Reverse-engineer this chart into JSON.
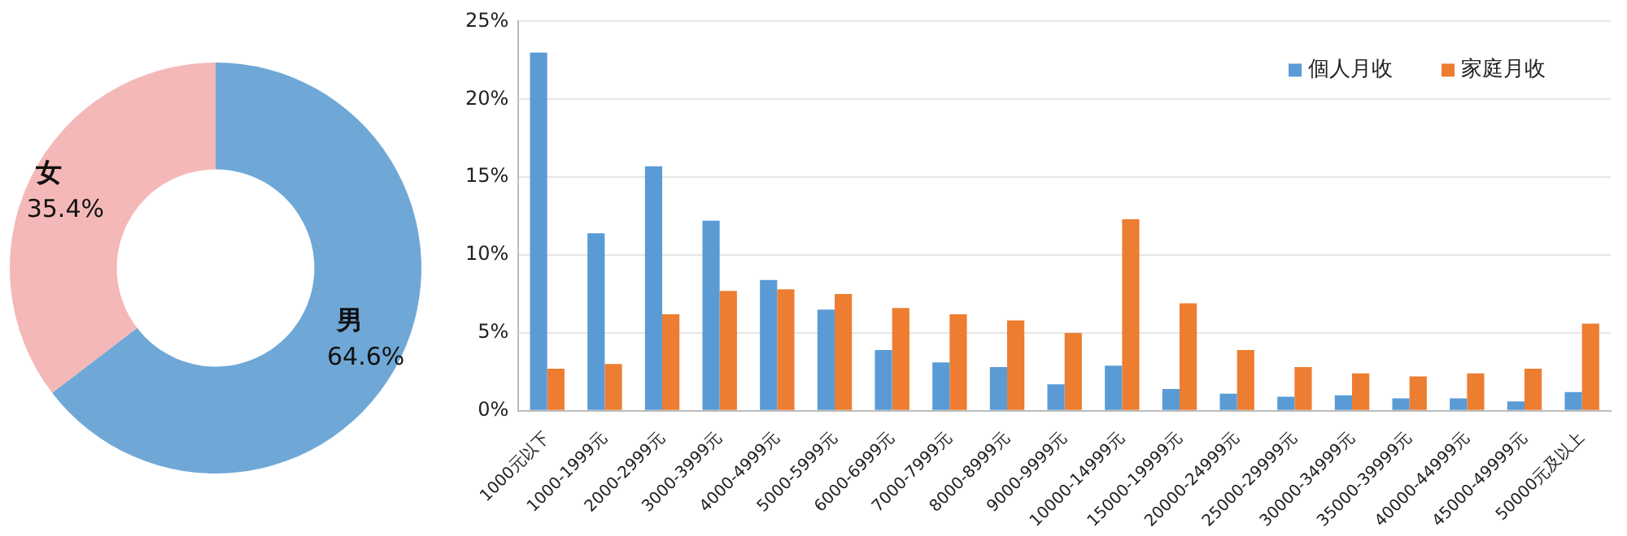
{
  "chart_data": [
    {
      "type": "donut",
      "categories": [
        "男",
        "女"
      ],
      "values": [
        64.6,
        35.4
      ],
      "colors": [
        "#6fa8d6",
        "#f4b8b8"
      ],
      "value_labels": [
        "64.6%",
        "35.4%"
      ],
      "legend": false
    },
    {
      "type": "bar",
      "categories": [
        "1000元以下",
        "1000-1999元",
        "2000-2999元",
        "3000-3999元",
        "4000-4999元",
        "5000-5999元",
        "6000-6999元",
        "7000-7999元",
        "8000-8999元",
        "9000-9999元",
        "10000-14999元",
        "15000-19999元",
        "20000-24999元",
        "25000-29999元",
        "30000-34999元",
        "35000-39999元",
        "40000-44999元",
        "45000-49999元",
        "50000元及以上"
      ],
      "series": [
        {
          "name": "個人月收",
          "color": "#5b9bd5",
          "values": [
            23,
            11.4,
            15.7,
            12.2,
            8.4,
            6.5,
            3.9,
            3.1,
            2.8,
            1.7,
            2.9,
            1.4,
            1.1,
            0.9,
            1.0,
            0.8,
            0.8,
            0.6,
            1.2
          ]
        },
        {
          "name": "家庭月收",
          "color": "#ed7d31",
          "values": [
            2.7,
            3.0,
            6.2,
            7.7,
            7.8,
            7.5,
            6.6,
            6.2,
            5.8,
            5.0,
            12.3,
            6.9,
            3.9,
            2.8,
            2.4,
            2.2,
            2.4,
            2.7,
            5.6
          ]
        }
      ],
      "ylim": [
        0,
        25
      ],
      "yticks": [
        {
          "value": 0,
          "label": "0%"
        },
        {
          "value": 5,
          "label": "5%"
        },
        {
          "value": 10,
          "label": "10%"
        },
        {
          "value": 15,
          "label": "15%"
        },
        {
          "value": 20,
          "label": "20%"
        },
        {
          "value": 25,
          "label": "25%"
        }
      ],
      "grid": "y",
      "legend": "top right"
    }
  ]
}
